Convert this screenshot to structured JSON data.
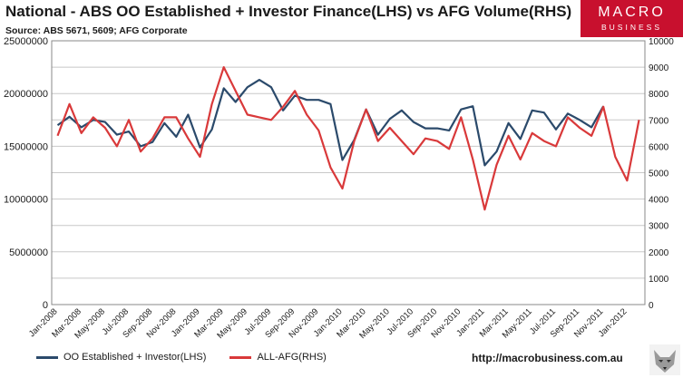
{
  "header": {
    "title": "National - ABS OO Established + Investor Finance(LHS) vs AFG Volume(RHS)",
    "subtitle": "Source: ABS 5671, 5609; AFG Corporate"
  },
  "logo": {
    "line1": "MACRO",
    "line2": "BUSINESS"
  },
  "footer": {
    "url": "http://macrobusiness.com.au"
  },
  "colors": {
    "series1": "#2b4a6b",
    "series2": "#d9393a",
    "logo_bg": "#c8102e",
    "grid": "#c8c8c8"
  },
  "chart_data": {
    "type": "line",
    "x": [
      "Jan-2008",
      "Feb-2008",
      "Mar-2008",
      "Apr-2008",
      "May-2008",
      "Jun-2008",
      "Jul-2008",
      "Aug-2008",
      "Sep-2008",
      "Oct-2008",
      "Nov-2008",
      "Dec-2008",
      "Jan-2009",
      "Feb-2009",
      "Mar-2009",
      "Apr-2009",
      "May-2009",
      "Jun-2009",
      "Jul-2009",
      "Aug-2009",
      "Sep-2009",
      "Oct-2009",
      "Nov-2009",
      "Dec-2009",
      "Jan-2010",
      "Feb-2010",
      "Mar-2010",
      "Apr-2010",
      "May-2010",
      "Jun-2010",
      "Jul-2010",
      "Aug-2010",
      "Sep-2010",
      "Oct-2010",
      "Nov-2010",
      "Dec-2010",
      "Jan-2011",
      "Feb-2011",
      "Mar-2011",
      "Apr-2011",
      "May-2011",
      "Jun-2011",
      "Jul-2011",
      "Aug-2011",
      "Sep-2011",
      "Oct-2011",
      "Nov-2011",
      "Dec-2011",
      "Jan-2012",
      "Feb-2012"
    ],
    "x_tick_labels": [
      "Jan-2008",
      "Mar-2008",
      "May-2008",
      "Jul-2008",
      "Sep-2008",
      "Nov-2008",
      "Jan-2009",
      "Mar-2009",
      "May-2009",
      "Jul-2009",
      "Sep-2009",
      "Nov-2009",
      "Jan-2010",
      "Mar-2010",
      "May-2010",
      "Jul-2010",
      "Sep-2010",
      "Nov-2010",
      "Jan-2011",
      "Mar-2011",
      "May-2011",
      "Jul-2011",
      "Sep-2011",
      "Nov-2011",
      "Jan-2012"
    ],
    "y_left": {
      "min": 0,
      "max": 25000000,
      "ticks": [
        "0",
        "5000000",
        "10000000",
        "15000000",
        "20000000",
        "25000000"
      ]
    },
    "y_right": {
      "min": 0,
      "max": 10000,
      "ticks": [
        "0",
        "1000",
        "2000",
        "3000",
        "4000",
        "5000",
        "6000",
        "7000",
        "8000",
        "9000",
        "10000"
      ]
    },
    "grid": true,
    "legend_position": "bottom-left",
    "series": [
      {
        "name": "OO Established + Investor(LHS)",
        "axis": "left",
        "values": [
          17000000,
          17800000,
          16800000,
          17500000,
          17300000,
          16100000,
          16400000,
          15000000,
          15400000,
          17200000,
          15900000,
          18000000,
          14900000,
          16600000,
          20500000,
          19200000,
          20600000,
          21300000,
          20600000,
          18400000,
          19800000,
          19400000,
          19400000,
          19000000,
          13700000,
          15600000,
          18500000,
          16100000,
          17600000,
          18400000,
          17300000,
          16700000,
          16700000,
          16500000,
          18500000,
          18800000,
          13200000,
          14500000,
          17200000,
          15700000,
          18400000,
          18200000,
          16600000,
          18100000,
          17500000,
          16800000,
          18800000,
          null,
          null,
          null
        ]
      },
      {
        "name": "ALL-AFG(RHS)",
        "axis": "right",
        "values": [
          6400,
          7600,
          6500,
          7100,
          6700,
          6000,
          7000,
          5800,
          6300,
          7100,
          7100,
          6300,
          5600,
          7600,
          9000,
          8100,
          7200,
          7100,
          7000,
          7500,
          8100,
          7200,
          6600,
          5200,
          4400,
          6200,
          7400,
          6200,
          6700,
          6200,
          5700,
          6300,
          6200,
          5900,
          7100,
          5500,
          3600,
          5300,
          6400,
          5500,
          6500,
          6200,
          6000,
          7100,
          6700,
          6400,
          7500,
          5600,
          4700,
          7000
        ]
      }
    ]
  }
}
